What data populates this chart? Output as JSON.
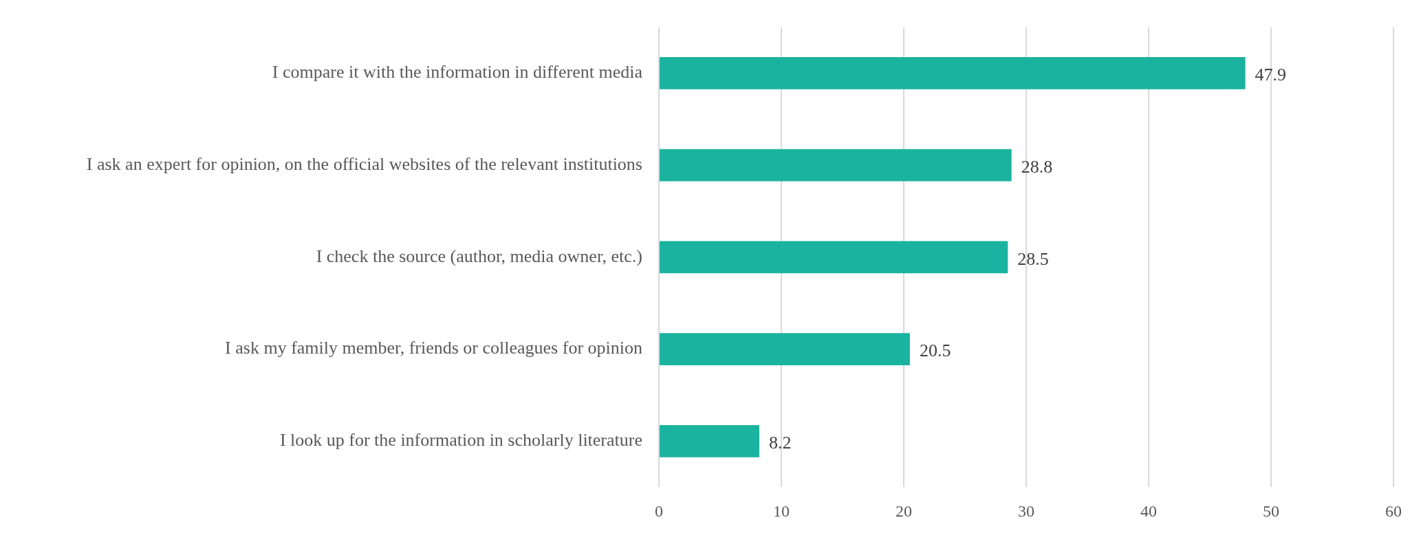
{
  "chart_data": {
    "type": "bar",
    "orientation": "horizontal",
    "categories": [
      "I compare it with the information in different media",
      "I ask an expert for opinion, on the official websites of the relevant institutions",
      "I check the source (author, media owner, etc.)",
      "I ask my family member, friends or colleagues for opinion",
      "I look up for the information in scholarly literature"
    ],
    "values": [
      47.9,
      28.8,
      28.5,
      20.5,
      8.2
    ],
    "color": "#1ab3a0",
    "xlim": [
      0,
      60
    ],
    "xticks": [
      0,
      10,
      20,
      30,
      40,
      50,
      60
    ],
    "grid": "x",
    "legend": false,
    "data_labels": true
  }
}
